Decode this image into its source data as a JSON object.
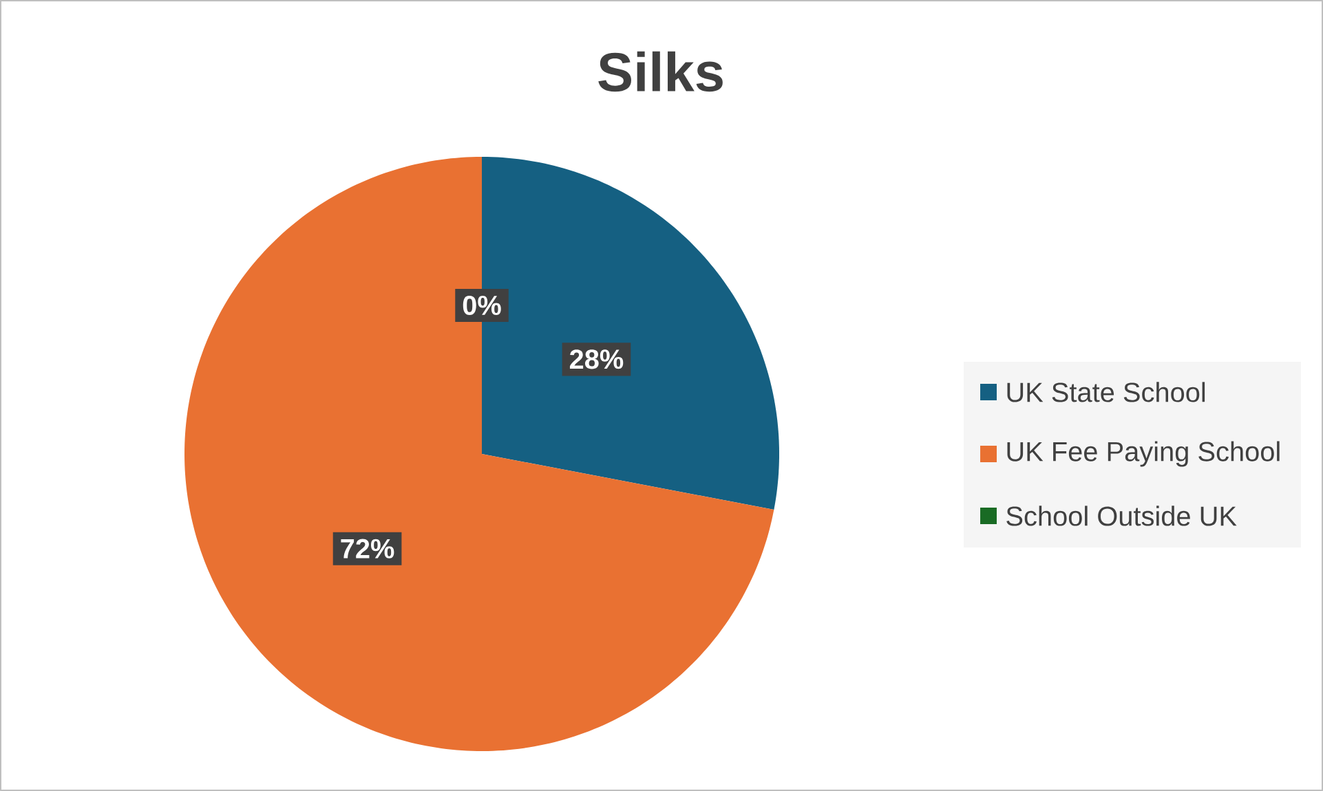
{
  "chart_data": {
    "type": "pie",
    "title": "Silks",
    "categories": [
      "UK State School",
      "UK Fee Paying School",
      "School Outside UK"
    ],
    "values": [
      28,
      72,
      0
    ],
    "colors": [
      "#156082",
      "#e97132",
      "#196b24"
    ],
    "value_labels": [
      "28%",
      "72%",
      "0%"
    ],
    "legend": "right"
  }
}
